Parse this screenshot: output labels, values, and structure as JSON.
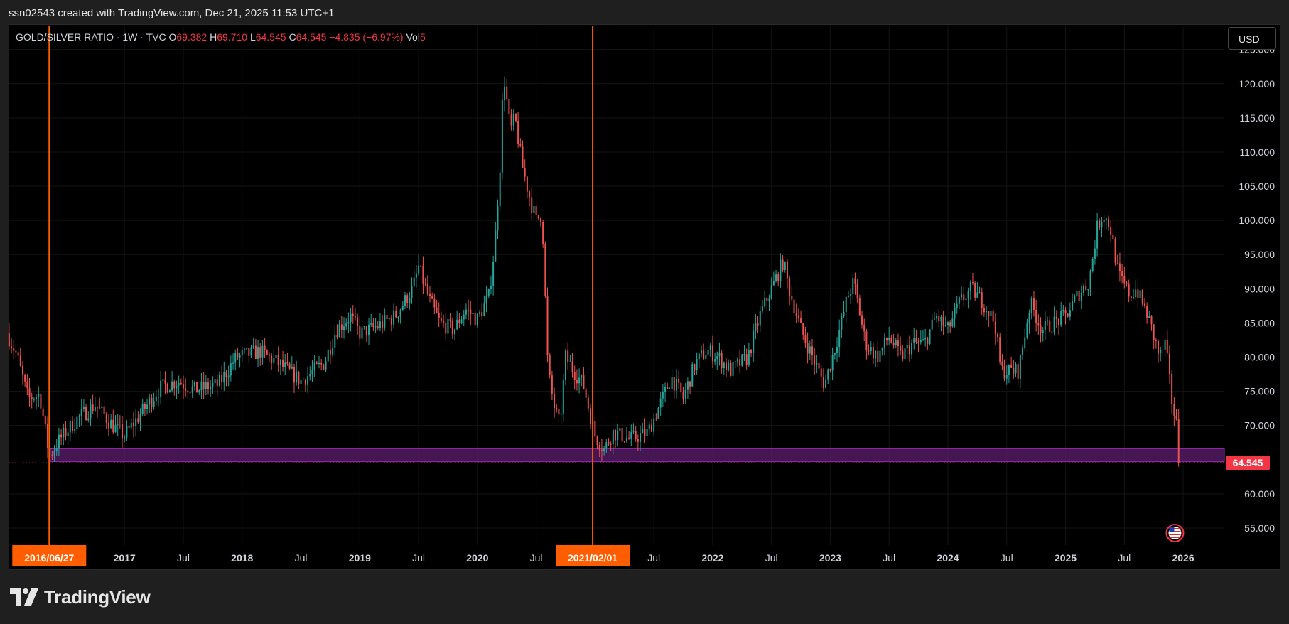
{
  "header": {
    "attribution": "ssn02543 created with TradingView.com, Dec 21, 2025 11:53 UTC+1"
  },
  "legend": {
    "symbol": "GOLD/SILVER RATIO · 1W · TVC",
    "open_label": "O",
    "open": "69.382",
    "high_label": "H",
    "high": "69.710",
    "low_label": "L",
    "low": "64.545",
    "close_label": "C",
    "close": "64.545",
    "change": "−4.835 (−6.97%)",
    "vol_label": "Vol",
    "vol": "5"
  },
  "currency_button": "USD",
  "footer": {
    "brand": "TradingView"
  },
  "colors": {
    "up": "#26a69a",
    "down": "#ef5350",
    "vline": "#ff5d00",
    "zone_fill": "#5b1d6e",
    "zone_border": "#9c27b0",
    "price_tag": "#f23645"
  },
  "chart_data": {
    "type": "candlestick",
    "timeframe": "1W",
    "ylim": [
      52.5,
      128.5
    ],
    "y_ticks": [
      "125.000",
      "120.000",
      "115.000",
      "110.000",
      "105.000",
      "100.000",
      "95.000",
      "90.000",
      "85.000",
      "80.000",
      "75.000",
      "70.000",
      "64.545",
      "60.000",
      "55.000"
    ],
    "y_tick_values": [
      125,
      120,
      115,
      110,
      105,
      100,
      95,
      90,
      85,
      80,
      75,
      70,
      64.545,
      60,
      55
    ],
    "x_ticks": [
      {
        "label": "2017",
        "t": 2017.0
      },
      {
        "label": "Jul",
        "t": 2017.5
      },
      {
        "label": "2018",
        "t": 2018.0
      },
      {
        "label": "Jul",
        "t": 2018.5
      },
      {
        "label": "2019",
        "t": 2019.0
      },
      {
        "label": "Jul",
        "t": 2019.5
      },
      {
        "label": "2020",
        "t": 2020.0
      },
      {
        "label": "Jul",
        "t": 2020.5
      },
      {
        "label": "Jul",
        "t": 2021.5
      },
      {
        "label": "2022",
        "t": 2022.0
      },
      {
        "label": "Jul",
        "t": 2022.5
      },
      {
        "label": "2023",
        "t": 2023.0
      },
      {
        "label": "Jul",
        "t": 2023.5
      },
      {
        "label": "2024",
        "t": 2024.0
      },
      {
        "label": "Jul",
        "t": 2024.5
      },
      {
        "label": "2025",
        "t": 2025.0
      },
      {
        "label": "Jul",
        "t": 2025.5
      },
      {
        "label": "2026",
        "t": 2026.0
      }
    ],
    "x_range": [
      2016.02,
      2026.35
    ],
    "marked_dates": [
      {
        "label": "2016/06/27",
        "t": 2016.36
      },
      {
        "label": "2021/02/01",
        "t": 2020.98
      }
    ],
    "support_zone": {
      "low": 64.7,
      "high": 66.6
    },
    "last_price": 64.545,
    "price_path": [
      [
        2016.0,
        83.5
      ],
      [
        2016.08,
        80.5
      ],
      [
        2016.18,
        74
      ],
      [
        2016.28,
        74.5
      ],
      [
        2016.36,
        65.5
      ],
      [
        2016.45,
        68
      ],
      [
        2016.6,
        71
      ],
      [
        2016.75,
        73
      ],
      [
        2016.9,
        70
      ],
      [
        2017.0,
        68.5
      ],
      [
        2017.15,
        72
      ],
      [
        2017.3,
        75.5
      ],
      [
        2017.45,
        76.5
      ],
      [
        2017.6,
        75.2
      ],
      [
        2017.8,
        76
      ],
      [
        2017.95,
        80
      ],
      [
        2018.15,
        80.8
      ],
      [
        2018.3,
        79.2
      ],
      [
        2018.5,
        76.5
      ],
      [
        2018.7,
        79.2
      ],
      [
        2018.8,
        84
      ],
      [
        2018.92,
        86
      ],
      [
        2019.0,
        83.5
      ],
      [
        2019.15,
        84.5
      ],
      [
        2019.3,
        86
      ],
      [
        2019.45,
        90
      ],
      [
        2019.5,
        93.2
      ],
      [
        2019.6,
        88
      ],
      [
        2019.68,
        85
      ],
      [
        2019.8,
        84
      ],
      [
        2019.9,
        87
      ],
      [
        2020.0,
        85.5
      ],
      [
        2020.1,
        89
      ],
      [
        2020.15,
        97
      ],
      [
        2020.2,
        110
      ],
      [
        2020.22,
        122
      ],
      [
        2020.28,
        113
      ],
      [
        2020.32,
        115
      ],
      [
        2020.38,
        108
      ],
      [
        2020.45,
        103
      ],
      [
        2020.5,
        100
      ],
      [
        2020.55,
        101
      ],
      [
        2020.6,
        78
      ],
      [
        2020.65,
        73
      ],
      [
        2020.7,
        70
      ],
      [
        2020.75,
        80
      ],
      [
        2020.82,
        78
      ],
      [
        2020.9,
        76
      ],
      [
        2021.0,
        68.5
      ],
      [
        2021.08,
        66.5
      ],
      [
        2021.15,
        69
      ],
      [
        2021.3,
        68
      ],
      [
        2021.45,
        69
      ],
      [
        2021.55,
        73
      ],
      [
        2021.65,
        77
      ],
      [
        2021.75,
        74
      ],
      [
        2021.85,
        79
      ],
      [
        2021.95,
        81
      ],
      [
        2022.05,
        80
      ],
      [
        2022.15,
        78
      ],
      [
        2022.3,
        80
      ],
      [
        2022.4,
        86
      ],
      [
        2022.5,
        90
      ],
      [
        2022.6,
        94
      ],
      [
        2022.65,
        90
      ],
      [
        2022.75,
        84
      ],
      [
        2022.85,
        80
      ],
      [
        2022.95,
        76
      ],
      [
        2023.05,
        82
      ],
      [
        2023.15,
        89
      ],
      [
        2023.2,
        91
      ],
      [
        2023.3,
        82
      ],
      [
        2023.4,
        80
      ],
      [
        2023.5,
        83
      ],
      [
        2023.6,
        80
      ],
      [
        2023.7,
        82
      ],
      [
        2023.8,
        82
      ],
      [
        2023.9,
        86
      ],
      [
        2024.0,
        84
      ],
      [
        2024.1,
        88
      ],
      [
        2024.2,
        90
      ],
      [
        2024.3,
        88
      ],
      [
        2024.4,
        85
      ],
      [
        2024.45,
        78
      ],
      [
        2024.55,
        78
      ],
      [
        2024.6,
        78
      ],
      [
        2024.7,
        88
      ],
      [
        2024.8,
        84
      ],
      [
        2024.9,
        85
      ],
      [
        2025.0,
        86
      ],
      [
        2025.1,
        89
      ],
      [
        2025.2,
        91
      ],
      [
        2025.27,
        99
      ],
      [
        2025.32,
        101
      ],
      [
        2025.38,
        99
      ],
      [
        2025.45,
        92
      ],
      [
        2025.55,
        89
      ],
      [
        2025.6,
        90
      ],
      [
        2025.7,
        86
      ],
      [
        2025.8,
        80
      ],
      [
        2025.85,
        82
      ],
      [
        2025.9,
        74
      ],
      [
        2025.95,
        69.4
      ],
      [
        2025.97,
        64.545
      ]
    ]
  }
}
